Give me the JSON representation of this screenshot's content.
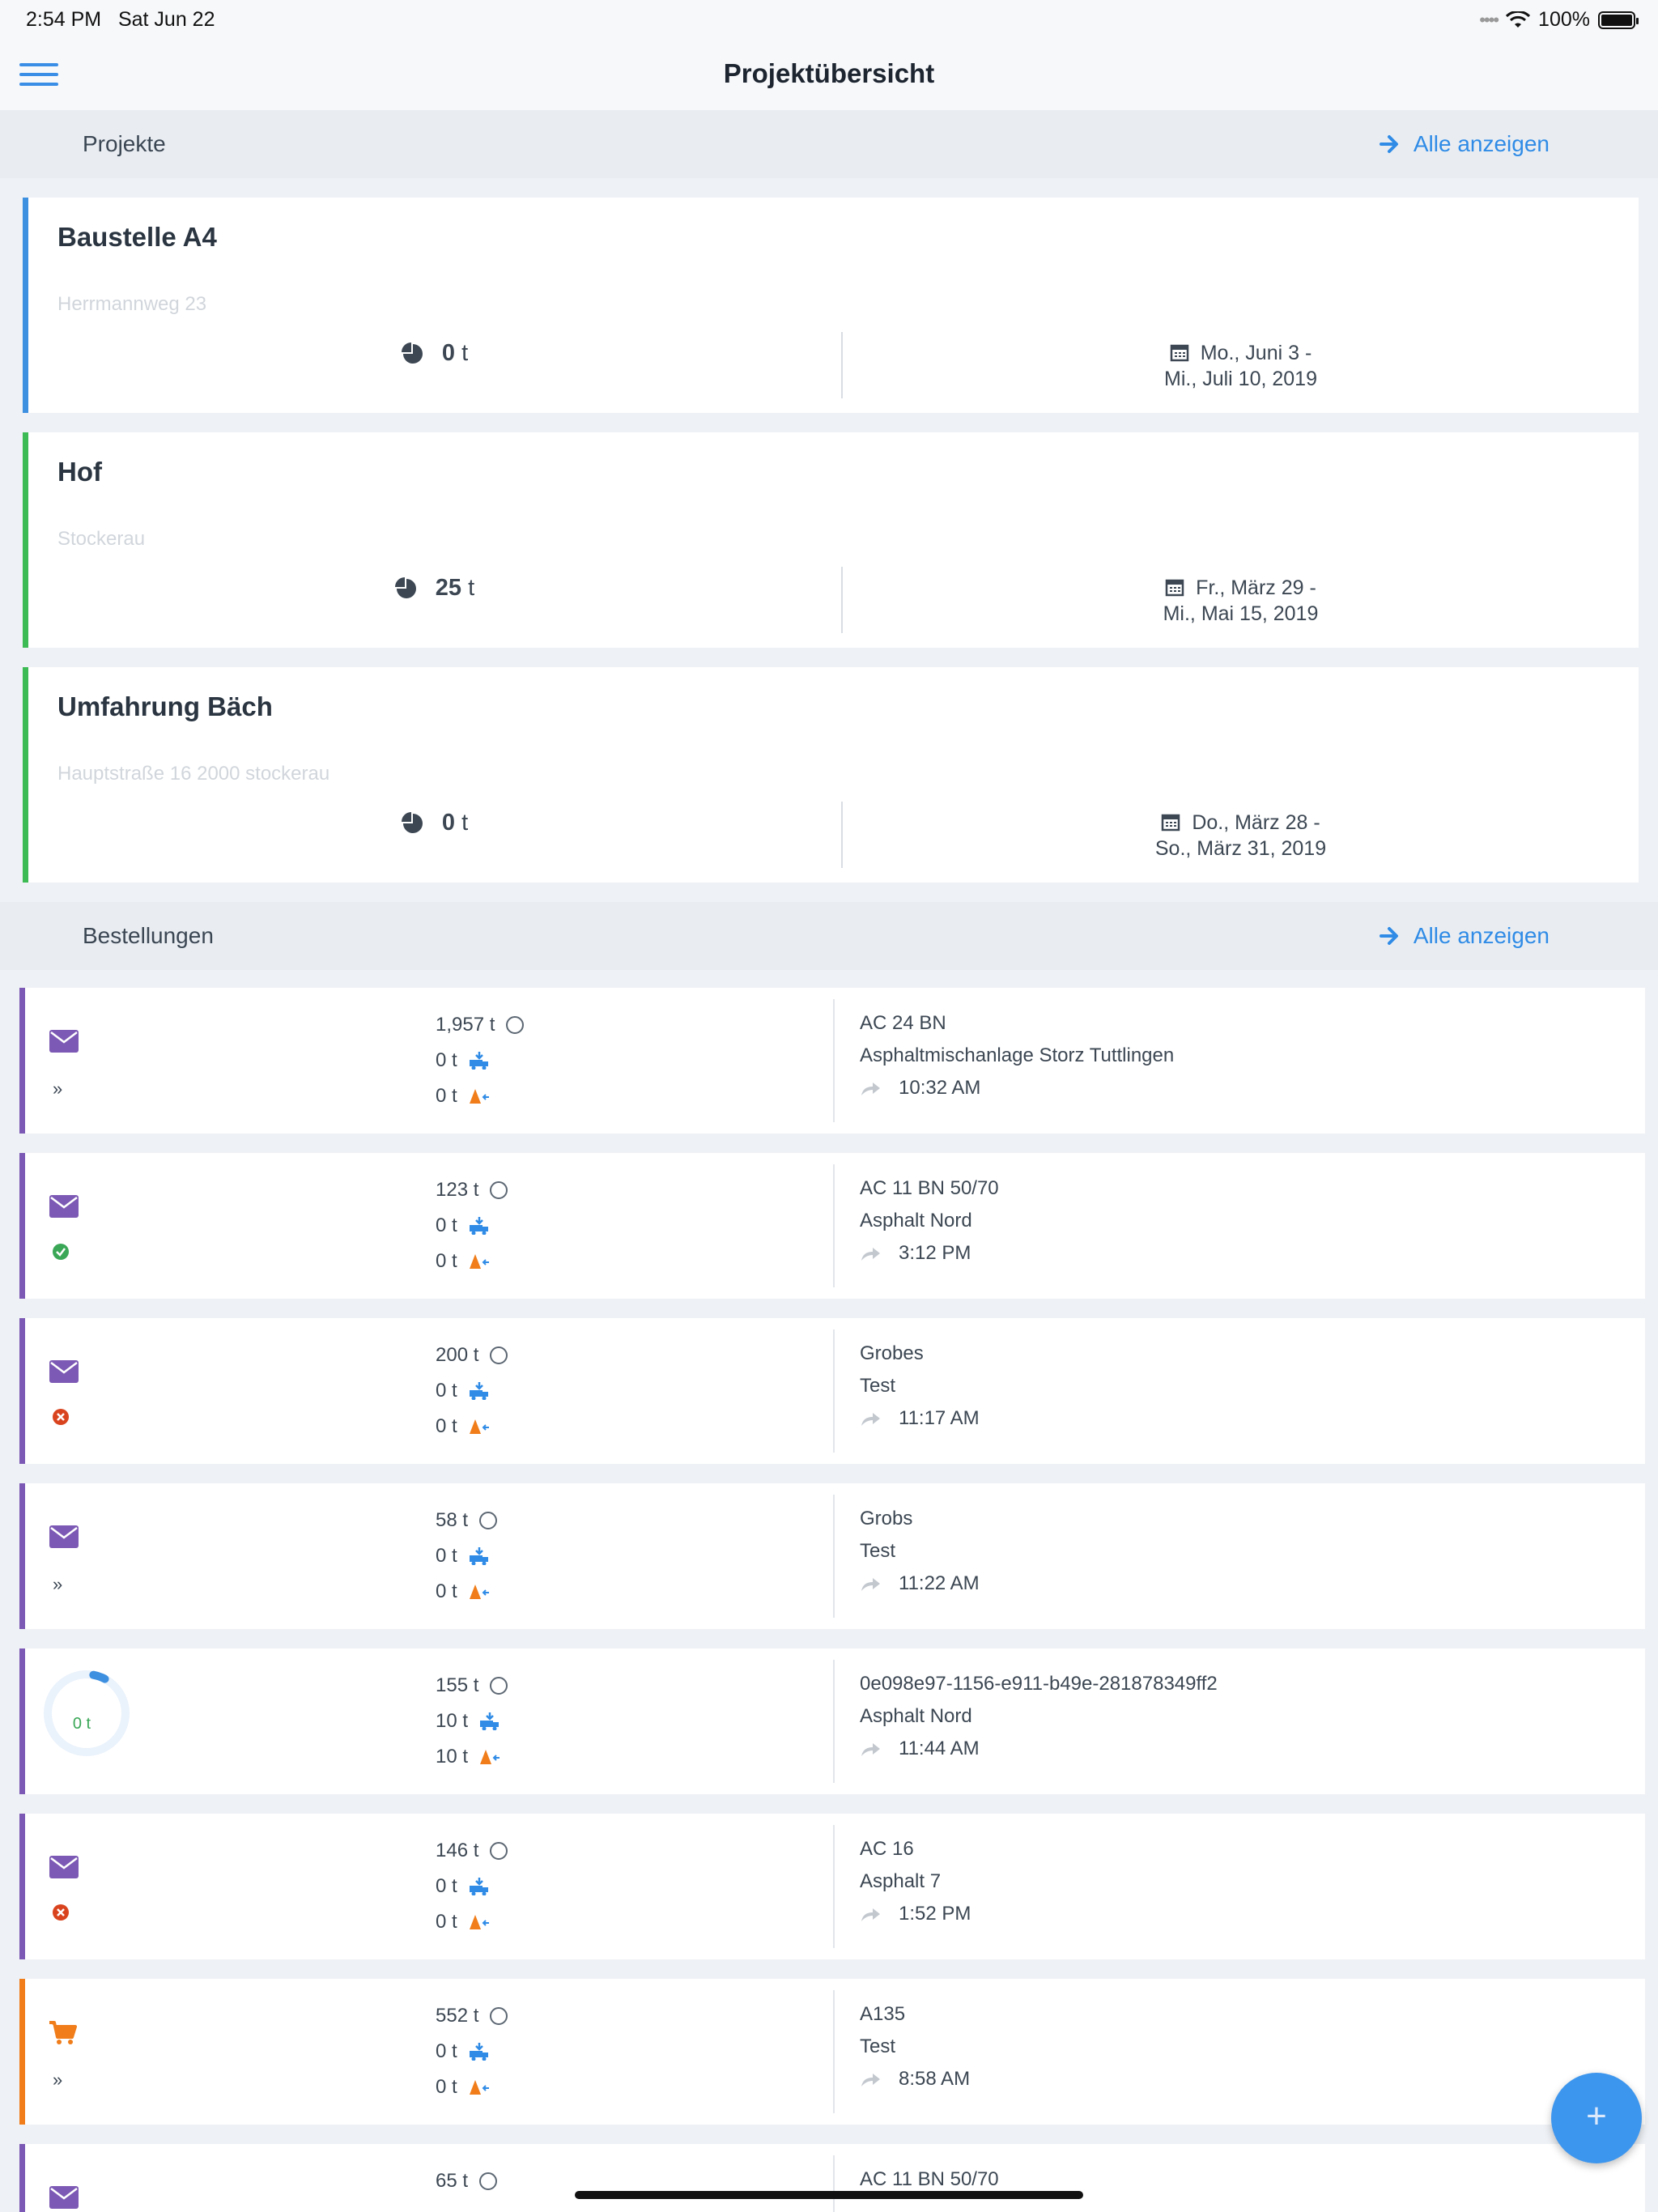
{
  "status": {
    "time": "2:54 PM",
    "date": "Sat Jun 22",
    "battery": "100%",
    "signal_dots": "••••"
  },
  "nav": {
    "title": "Projektübersicht"
  },
  "projects_section": {
    "label": "Projekte",
    "link": "Alle anzeigen"
  },
  "projects": [
    {
      "name": "Baustelle A4",
      "address": "Herrmannweg 23",
      "tons": "0",
      "unit": "t",
      "date_line1": "Mo., Juni 3 -",
      "date_line2": "Mi., Juli 10, 2019",
      "color": "#3d8fe0"
    },
    {
      "name": "Hof",
      "address": "Stockerau",
      "tons": "25",
      "unit": "t",
      "date_line1": "Fr., März 29 -",
      "date_line2": "Mi., Mai 15, 2019",
      "color": "#3cba54"
    },
    {
      "name": "Umfahrung Bäch",
      "address": "Hauptstraße 16 2000 stockerau",
      "tons": "0",
      "unit": "t",
      "date_line1": "Do., März 28 -",
      "date_line2": "So., März 31, 2019",
      "color": "#3cba54"
    }
  ],
  "orders_section": {
    "label": "Bestellungen",
    "link": "Alle anzeigen"
  },
  "orders": [
    {
      "status_icon": "envelope-icon",
      "sub_icon": "double-chevron-icon",
      "ordered": "1,957 t",
      "delivered": "0 t",
      "returned": "0 t",
      "material": "AC 24 BN",
      "plant": "Asphaltmischanlage Storz Tuttlingen",
      "time": "10:32 AM",
      "color": "#7c59b4"
    },
    {
      "status_icon": "envelope-icon",
      "sub_icon": "check-circle-icon",
      "ordered": "123 t",
      "delivered": "0 t",
      "returned": "0 t",
      "material": "AC 11 BN 50/70",
      "plant": "Asphalt Nord",
      "time": "3:12 PM",
      "color": "#7c59b4"
    },
    {
      "status_icon": "envelope-icon",
      "sub_icon": "error-circle-icon",
      "ordered": "200 t",
      "delivered": "0 t",
      "returned": "0 t",
      "material": "Grobes",
      "plant": "Test",
      "time": "11:17 AM",
      "color": "#7c59b4"
    },
    {
      "status_icon": "envelope-icon",
      "sub_icon": "double-chevron-icon",
      "ordered": "58 t",
      "delivered": "0 t",
      "returned": "0 t",
      "material": "Grobs",
      "plant": "Test",
      "time": "11:22 AM",
      "color": "#7c59b4"
    },
    {
      "status_icon": "progress-ring",
      "sub_icon": "",
      "progress_text": "0 t",
      "progress_fraction": 0.05,
      "ordered": "155 t",
      "delivered": "10 t",
      "returned": "10 t",
      "material": "0e098e97-1156-e911-b49e-281878349ff2",
      "plant": "Asphalt Nord",
      "time": "11:44 AM",
      "color": "#7c59b4"
    },
    {
      "status_icon": "envelope-icon",
      "sub_icon": "error-circle-icon",
      "ordered": "146 t",
      "delivered": "0 t",
      "returned": "0 t",
      "material": "AC 16",
      "plant": "Asphalt 7",
      "time": "1:52 PM",
      "color": "#7c59b4"
    },
    {
      "status_icon": "cart-icon",
      "sub_icon": "double-chevron-icon",
      "ordered": "552 t",
      "delivered": "0 t",
      "returned": "0 t",
      "material": "A135",
      "plant": "Test",
      "time": "8:58 AM",
      "color": "#f07d1a"
    },
    {
      "status_icon": "envelope-icon",
      "sub_icon": "",
      "ordered": "65 t",
      "delivered": "",
      "returned": "",
      "material": "AC 11 BN 50/70",
      "plant": "",
      "time": "",
      "color": "#7c59b4"
    }
  ],
  "fab": {
    "label": "+"
  }
}
